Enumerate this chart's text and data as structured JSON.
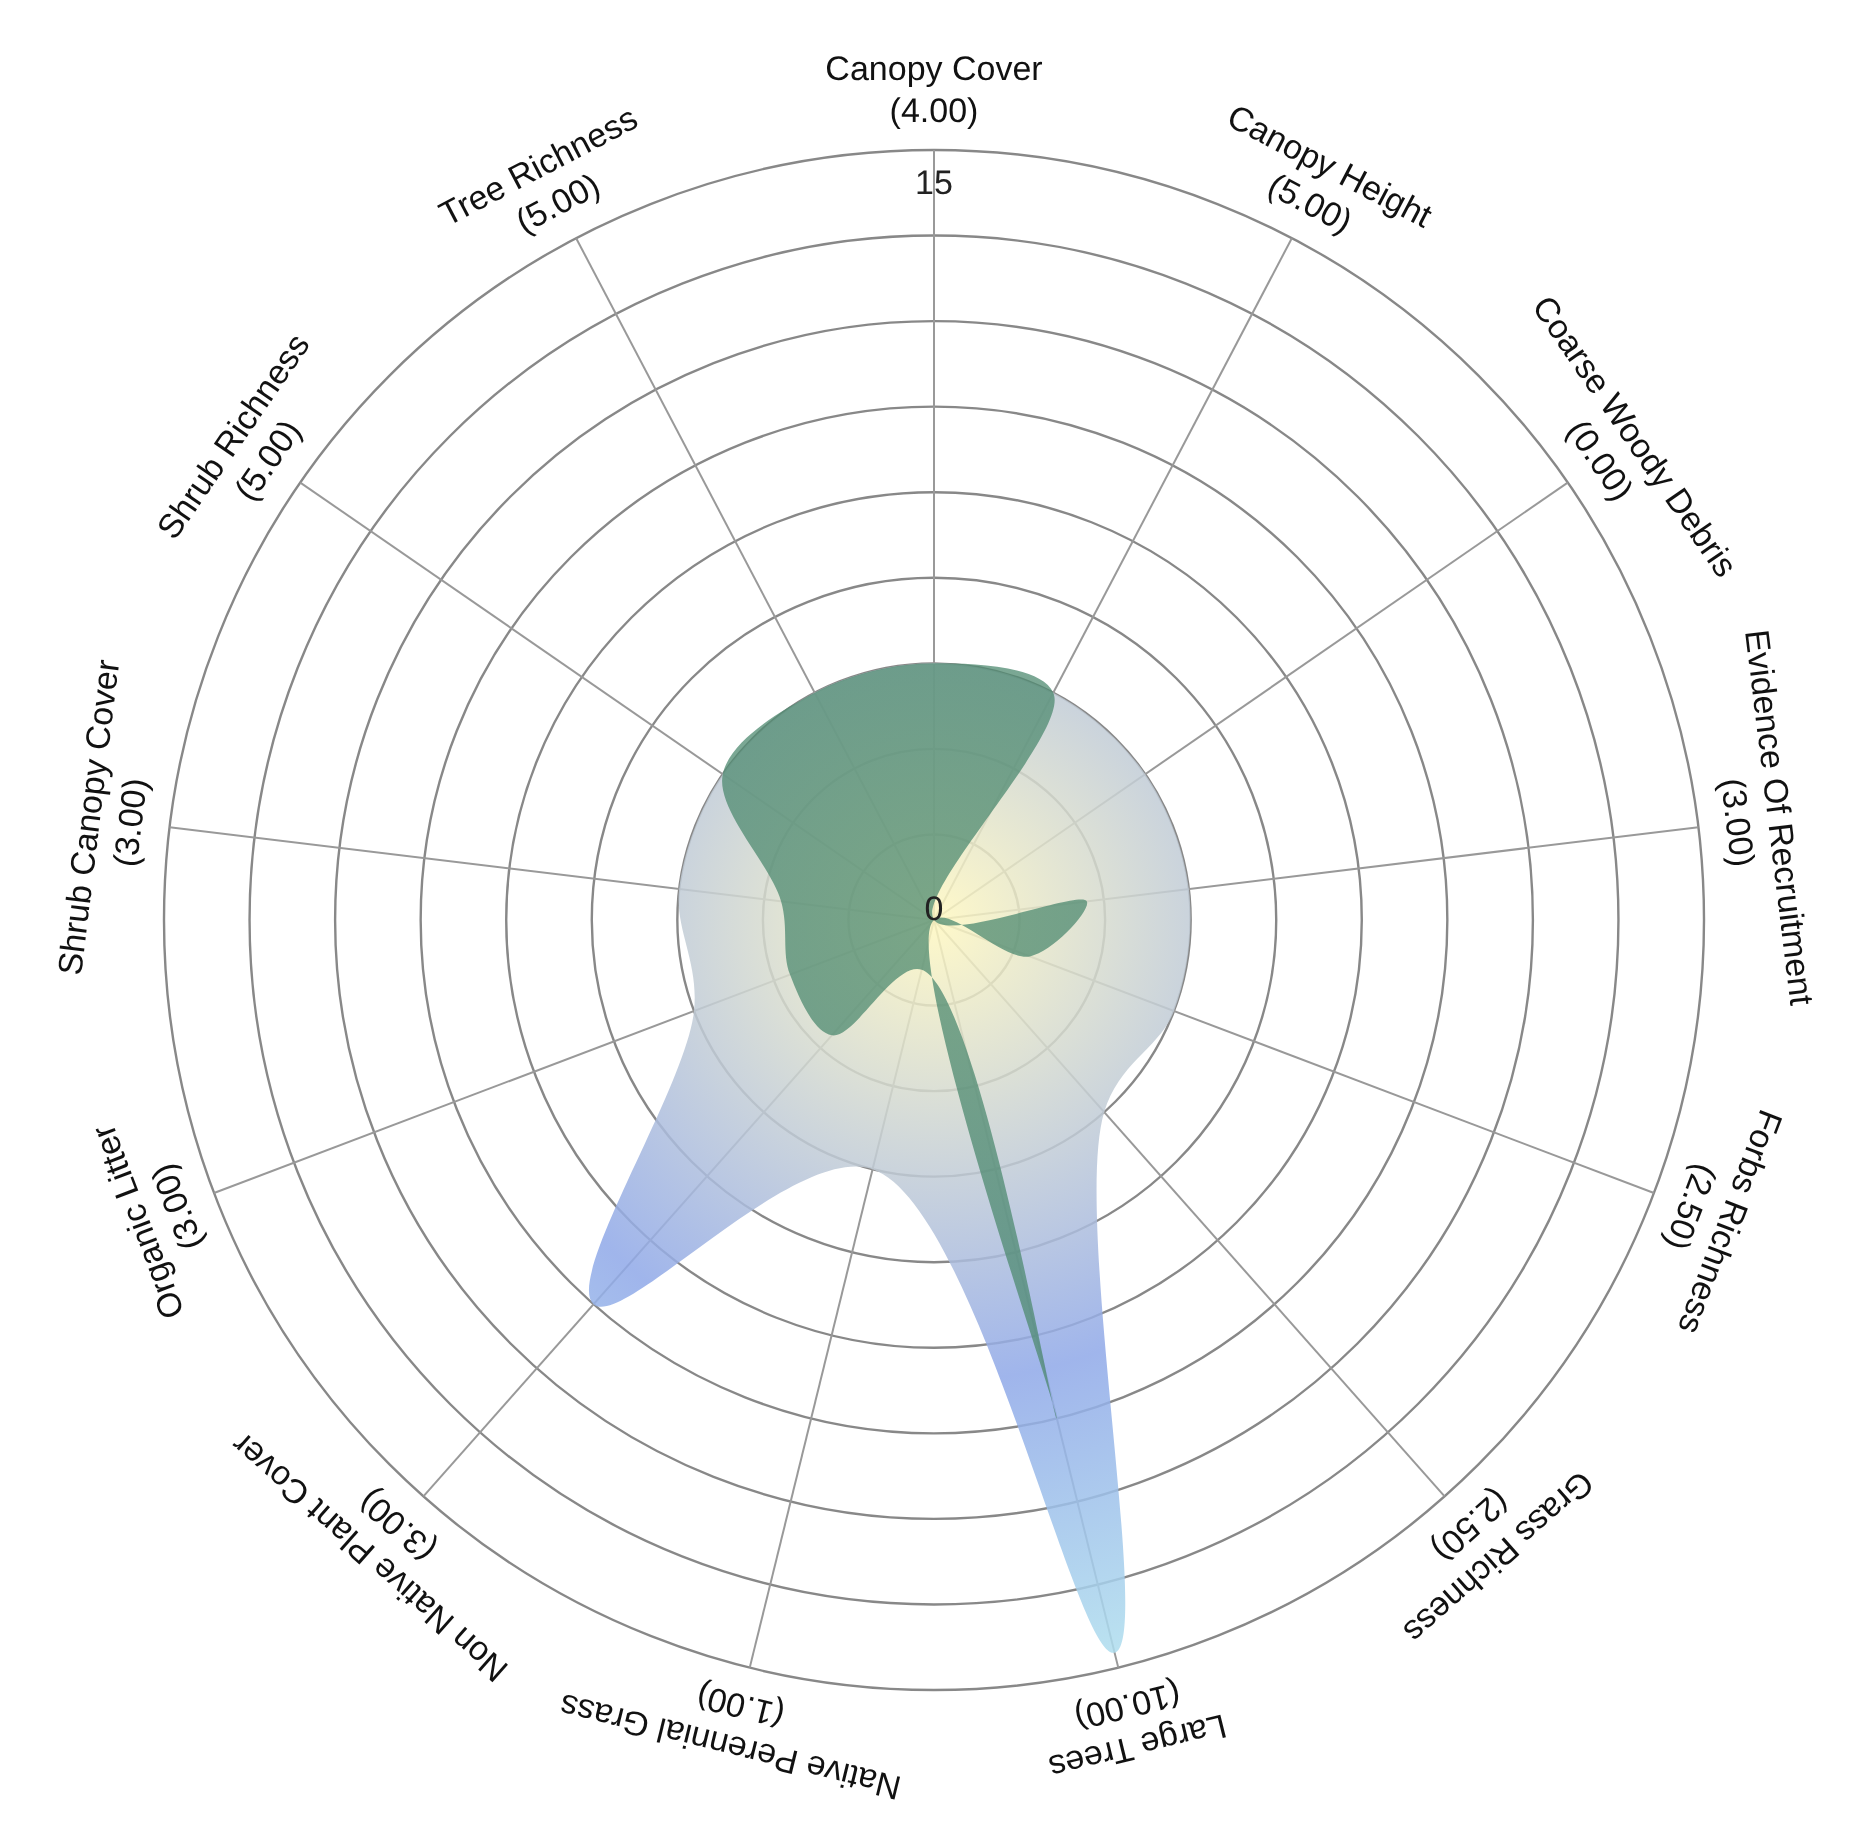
{
  "chart_data": {
    "type": "radar",
    "categories": [
      "Canopy Cover\n(4.00)",
      "Canopy Height\n(5.00)",
      "Coarse Woody Debris\n(0.00)",
      "Evidence Of Recruitment\n(3.00)",
      "Forbs Richness\n(2.50)",
      "Grass Richness\n(2.50)",
      "Large Trees\n(10.00)",
      "Native Perennial Grass\n(1.00)",
      "Non Native Plant Cover\n(3.00)",
      "Organic Litter\n(3.00)",
      "Shrub Canopy Cover\n(3.00)",
      "Shrub Richness\n(5.00)",
      "Tree Richness\n(5.00)"
    ],
    "series": [
      {
        "color": "#8fa8e8",
        "values": [
          5,
          5,
          5,
          5,
          5,
          5,
          14.7,
          5,
          10,
          5,
          5,
          5,
          5
        ]
      },
      {
        "color": "#4e8a70",
        "values": [
          5,
          5,
          0,
          3,
          2,
          0,
          10,
          1,
          3,
          3,
          3,
          5,
          5
        ]
      }
    ],
    "ylim": [
      0,
      15
    ],
    "yticks": [
      0,
      15
    ]
  }
}
